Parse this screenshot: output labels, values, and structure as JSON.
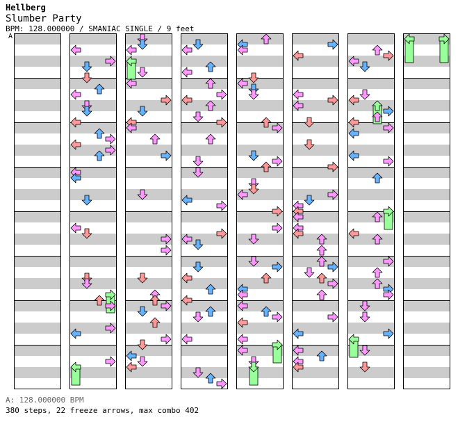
{
  "song": {
    "artist": "Hellberg",
    "title": "Slumber Party",
    "meta": "BPM: 128.000000 / SMANIAC SINGLE / 9 feet"
  },
  "bpm_marker": "A",
  "footer": {
    "bpm_line": "A: 128.000000 BPM",
    "stats": "380 steps, 22 freeze arrows, max combo 402"
  },
  "colors": {
    "quarter": "#ff9999",
    "eighth": "#66b3ff",
    "sixteenth": "#ff99ff",
    "freeze": "#99ff99",
    "stripe": "#cccccc"
  },
  "chart": {
    "columns": 7,
    "rows": [
      [
        "L",
        "",
        "",
        "",
        "L",
        "U",
        "",
        "",
        "",
        "U",
        "R",
        "",
        "",
        ""
      ],
      [
        "",
        "",
        "",
        "",
        "",
        "U",
        "",
        "",
        "",
        "",
        "",
        "",
        "",
        ""
      ]
    ]
  }
}
